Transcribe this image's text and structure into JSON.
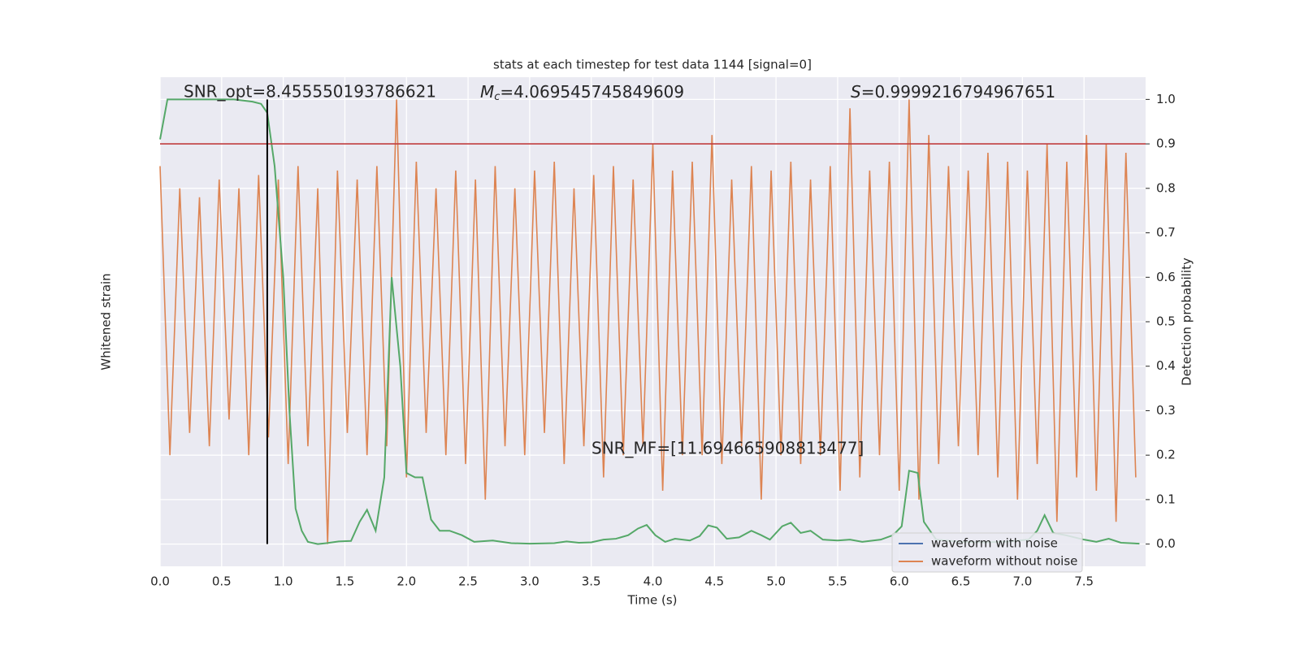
{
  "chart_data": {
    "type": "line",
    "title": "stats at each timestep for test data 1144 [signal=0]",
    "xlabel": "Time (s)",
    "ylabel": "Whitened strain",
    "y2label": "Detection probability",
    "xlim": [
      0,
      8.0
    ],
    "xticks": [
      0.0,
      0.5,
      1.0,
      1.5,
      2.0,
      2.5,
      3.0,
      3.5,
      4.0,
      4.5,
      5.0,
      5.5,
      6.0,
      6.5,
      7.0,
      7.5
    ],
    "xtick_labels": [
      "0.0",
      "0.5",
      "1.0",
      "1.5",
      "2.0",
      "2.5",
      "3.0",
      "3.5",
      "4.0",
      "4.5",
      "5.0",
      "5.5",
      "6.0",
      "6.5",
      "7.0",
      "7.5"
    ],
    "y2lim": [
      -0.05,
      1.05
    ],
    "y2ticks": [
      0.0,
      0.1,
      0.2,
      0.3,
      0.4,
      0.5,
      0.6,
      0.7,
      0.8,
      0.9,
      1.0
    ],
    "y2tick_labels": [
      "0.0",
      "0.1",
      "0.2",
      "0.3",
      "0.4",
      "0.5",
      "0.6",
      "0.7",
      "0.8",
      "0.9",
      "1.0"
    ],
    "grid": true,
    "legend_position": "lower right",
    "threshold": {
      "value": 0.9,
      "color": "#c03d3e"
    },
    "marker_time": {
      "value": 0.87,
      "color": "#000000"
    },
    "annotations": [
      {
        "text": "SNR_opt=8.455550193786621"
      },
      {
        "symbol": "M",
        "sub": "c",
        "text": "=4.069545745849609"
      },
      {
        "symbol": "S",
        "text": "=0.9999216794967651"
      },
      {
        "text": "SNR_MF=[11.694665908813477]"
      }
    ],
    "series": [
      {
        "name": "waveform with noise",
        "color": "#4c72b0"
      },
      {
        "name": "waveform without noise",
        "color": "#dd8452",
        "axis": "y2",
        "x": [
          0,
          0.08,
          0.16,
          0.24,
          0.32,
          0.4,
          0.48,
          0.56,
          0.64,
          0.72,
          0.8,
          0.88,
          0.96,
          1.04,
          1.12,
          1.2,
          1.28,
          1.36,
          1.44,
          1.52,
          1.6,
          1.68,
          1.76,
          1.84,
          1.92,
          2.0,
          2.08,
          2.16,
          2.24,
          2.32,
          2.4,
          2.48,
          2.56,
          2.64,
          2.72,
          2.8,
          2.88,
          2.96,
          3.04,
          3.12,
          3.2,
          3.28,
          3.36,
          3.44,
          3.52,
          3.6,
          3.68,
          3.76,
          3.84,
          3.92,
          4.0,
          4.08,
          4.16,
          4.24,
          4.32,
          4.4,
          4.48,
          4.56,
          4.64,
          4.72,
          4.8,
          4.88,
          4.96,
          5.04,
          5.12,
          5.2,
          5.28,
          5.36,
          5.44,
          5.52,
          5.6,
          5.68,
          5.76,
          5.84,
          5.92,
          6.0,
          6.08,
          6.16,
          6.24,
          6.32,
          6.4,
          6.48,
          6.56,
          6.64,
          6.72,
          6.8,
          6.88,
          6.96,
          7.04,
          7.12,
          7.2,
          7.28,
          7.36,
          7.44,
          7.52,
          7.6,
          7.68,
          7.76,
          7.84,
          7.92
        ],
        "values": [
          0.85,
          0.2,
          0.8,
          0.25,
          0.78,
          0.22,
          0.82,
          0.28,
          0.8,
          0.2,
          0.83,
          0.24,
          0.82,
          0.18,
          0.85,
          0.22,
          0.8,
          0.0,
          0.84,
          0.25,
          0.82,
          0.2,
          0.85,
          0.22,
          1.0,
          0.15,
          0.86,
          0.25,
          0.8,
          0.2,
          0.84,
          0.18,
          0.82,
          0.1,
          0.85,
          0.22,
          0.8,
          0.2,
          0.84,
          0.25,
          0.86,
          0.18,
          0.8,
          0.22,
          0.83,
          0.15,
          0.85,
          0.2,
          0.82,
          0.22,
          0.9,
          0.12,
          0.84,
          0.2,
          0.86,
          0.2,
          0.92,
          0.18,
          0.82,
          0.22,
          0.85,
          0.1,
          0.84,
          0.2,
          0.86,
          0.18,
          0.82,
          0.2,
          0.85,
          0.12,
          0.98,
          0.15,
          0.84,
          0.2,
          0.86,
          0.12,
          1.0,
          0.1,
          0.92,
          0.18,
          0.85,
          0.22,
          0.84,
          0.2,
          0.88,
          0.15,
          0.86,
          0.1,
          0.84,
          0.18,
          0.9,
          0.05,
          0.86,
          0.15,
          0.92,
          0.12,
          0.9,
          0.05,
          0.88,
          0.15
        ]
      },
      {
        "name": "Detection probability",
        "color": "#55a868",
        "axis": "y2",
        "x": [
          0.0,
          0.06,
          0.2,
          0.4,
          0.6,
          0.75,
          0.82,
          0.87,
          0.93,
          1.0,
          1.05,
          1.1,
          1.15,
          1.2,
          1.28,
          1.35,
          1.45,
          1.55,
          1.62,
          1.68,
          1.75,
          1.82,
          1.88,
          1.95,
          2.0,
          2.07,
          2.13,
          2.2,
          2.27,
          2.35,
          2.45,
          2.55,
          2.7,
          2.85,
          3.0,
          3.2,
          3.3,
          3.4,
          3.5,
          3.6,
          3.7,
          3.8,
          3.88,
          3.95,
          4.02,
          4.1,
          4.18,
          4.3,
          4.38,
          4.45,
          4.52,
          4.6,
          4.7,
          4.8,
          4.88,
          4.95,
          5.05,
          5.12,
          5.2,
          5.28,
          5.38,
          5.5,
          5.6,
          5.7,
          5.85,
          5.95,
          6.02,
          6.08,
          6.15,
          6.2,
          6.3,
          6.5,
          6.7,
          6.9,
          7.05,
          7.12,
          7.18,
          7.25,
          7.35,
          7.5,
          7.6,
          7.7,
          7.8,
          7.95
        ],
        "values": [
          0.91,
          1.0,
          1.0,
          1.0,
          1.0,
          0.995,
          0.99,
          0.97,
          0.85,
          0.6,
          0.3,
          0.08,
          0.03,
          0.005,
          0.0,
          0.002,
          0.006,
          0.007,
          0.05,
          0.077,
          0.03,
          0.15,
          0.6,
          0.4,
          0.16,
          0.15,
          0.15,
          0.055,
          0.03,
          0.03,
          0.02,
          0.005,
          0.008,
          0.002,
          0.001,
          0.002,
          0.006,
          0.003,
          0.004,
          0.01,
          0.012,
          0.02,
          0.035,
          0.043,
          0.02,
          0.005,
          0.012,
          0.008,
          0.018,
          0.042,
          0.037,
          0.012,
          0.015,
          0.03,
          0.02,
          0.01,
          0.04,
          0.048,
          0.025,
          0.03,
          0.01,
          0.008,
          0.01,
          0.005,
          0.01,
          0.02,
          0.04,
          0.165,
          0.16,
          0.05,
          0.01,
          0.005,
          0.004,
          0.006,
          0.01,
          0.03,
          0.065,
          0.025,
          0.02,
          0.01,
          0.005,
          0.012,
          0.003,
          0.001
        ]
      }
    ]
  }
}
